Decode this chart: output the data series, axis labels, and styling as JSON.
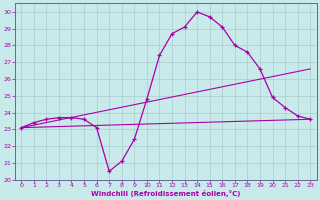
{
  "xlabel": "Windchill (Refroidissement éolien,°C)",
  "xlim": [
    -0.5,
    23.5
  ],
  "ylim": [
    20,
    30.5
  ],
  "xticks": [
    0,
    1,
    2,
    3,
    4,
    5,
    6,
    7,
    8,
    9,
    10,
    11,
    12,
    13,
    14,
    15,
    16,
    17,
    18,
    19,
    20,
    21,
    22,
    23
  ],
  "yticks": [
    20,
    21,
    22,
    23,
    24,
    25,
    26,
    27,
    28,
    29,
    30
  ],
  "bg_color": "#c8eaea",
  "grid_color": "#aacccc",
  "line_color": "#aa00aa",
  "line1_x": [
    0,
    1,
    2,
    3,
    4,
    5,
    6,
    7,
    8,
    9,
    10,
    11,
    12,
    13,
    14,
    15,
    16,
    17,
    18,
    19,
    20,
    21,
    22,
    23
  ],
  "line1_y": [
    23.1,
    23.4,
    23.6,
    23.7,
    23.7,
    23.6,
    23.1,
    20.5,
    21.1,
    22.4,
    24.8,
    27.4,
    28.7,
    29.1,
    30.0,
    29.7,
    29.1,
    28.0,
    27.6,
    26.6,
    24.9,
    24.3,
    23.8,
    23.6
  ],
  "line2_x": [
    0,
    23
  ],
  "line2_y": [
    23.1,
    23.6
  ],
  "line3_x": [
    0,
    23
  ],
  "line3_y": [
    23.1,
    26.6
  ]
}
